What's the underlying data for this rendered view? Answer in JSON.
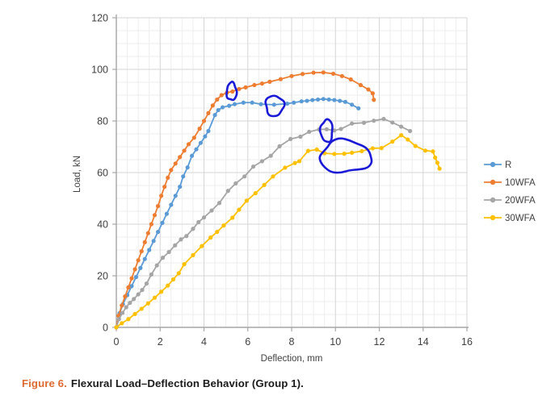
{
  "figure": {
    "caption_label": "Figure 6.",
    "caption_text": "Flexural Load–Deflection Behavior (Group 1)."
  },
  "chart_data": {
    "type": "line",
    "title": "",
    "xlabel": "Deflection, mm",
    "ylabel": "Load, kN",
    "xlim": [
      0,
      16
    ],
    "ylim": [
      0,
      120
    ],
    "x_major_ticks": [
      0,
      2,
      4,
      6,
      8,
      10,
      12,
      14,
      16
    ],
    "y_major_ticks": [
      0,
      20,
      40,
      60,
      80,
      100,
      120
    ],
    "x_minor_step": 0.5,
    "y_minor_step": 5,
    "grid": true,
    "legend_position": "right",
    "colors": {
      "axis": "#a6a6a6",
      "tick_label": "#404040",
      "grid_minor": "#ededed",
      "grid_major": "#d6d6d6",
      "annotation": "#1a1ad6",
      "caption_accent": "#dc6b32"
    },
    "series": [
      {
        "name": "R",
        "color": "#5b9bd5",
        "points": [
          [
            0,
            0
          ],
          [
            0.15,
            5.5
          ],
          [
            0.3,
            9
          ],
          [
            0.5,
            12.5
          ],
          [
            0.7,
            16
          ],
          [
            0.9,
            19.5
          ],
          [
            1.1,
            23
          ],
          [
            1.3,
            26.5
          ],
          [
            1.5,
            30
          ],
          [
            1.7,
            33.5
          ],
          [
            1.9,
            37
          ],
          [
            2.1,
            40.5
          ],
          [
            2.3,
            44
          ],
          [
            2.5,
            47.5
          ],
          [
            2.7,
            51
          ],
          [
            2.9,
            54.5
          ],
          [
            3.05,
            58.5
          ],
          [
            3.25,
            62
          ],
          [
            3.45,
            66.5
          ],
          [
            3.65,
            69
          ],
          [
            3.85,
            71.5
          ],
          [
            4.05,
            74
          ],
          [
            4.2,
            76.1
          ],
          [
            4.5,
            82.3
          ],
          [
            4.65,
            84.2
          ],
          [
            4.85,
            85.3
          ],
          [
            5.15,
            85.9
          ],
          [
            5.4,
            86.5
          ],
          [
            5.8,
            87.1
          ],
          [
            6.2,
            87.1
          ],
          [
            6.6,
            86.5
          ],
          [
            7.2,
            86.3
          ],
          [
            7.8,
            86.7
          ],
          [
            8.1,
            87.1
          ],
          [
            8.45,
            87.6
          ],
          [
            8.7,
            87.8
          ],
          [
            8.95,
            88.1
          ],
          [
            9.2,
            88.3
          ],
          [
            9.45,
            88.5
          ],
          [
            9.7,
            88.3
          ],
          [
            9.95,
            88.1
          ],
          [
            10.2,
            87.8
          ],
          [
            10.45,
            87.4
          ],
          [
            10.75,
            86.3
          ],
          [
            11.05,
            84.9
          ]
        ]
      },
      {
        "name": "10WFA",
        "color": "#ed7d31",
        "points": [
          [
            0,
            0
          ],
          [
            0.1,
            4.5
          ],
          [
            0.25,
            8.5
          ],
          [
            0.4,
            12
          ],
          [
            0.55,
            15.5
          ],
          [
            0.7,
            19
          ],
          [
            0.85,
            22.5
          ],
          [
            1,
            26
          ],
          [
            1.15,
            29.5
          ],
          [
            1.3,
            33
          ],
          [
            1.45,
            36.5
          ],
          [
            1.6,
            40
          ],
          [
            1.75,
            43.5
          ],
          [
            1.9,
            47
          ],
          [
            2.05,
            51
          ],
          [
            2.2,
            54.5
          ],
          [
            2.35,
            58
          ],
          [
            2.5,
            61
          ],
          [
            2.7,
            63.5
          ],
          [
            2.9,
            66
          ],
          [
            3.1,
            68.5
          ],
          [
            3.3,
            71
          ],
          [
            3.55,
            73.5
          ],
          [
            3.8,
            77
          ],
          [
            4,
            80
          ],
          [
            4.2,
            83
          ],
          [
            4.4,
            86
          ],
          [
            4.6,
            88.3
          ],
          [
            4.8,
            90
          ],
          [
            5.05,
            91
          ],
          [
            5.3,
            91.4
          ],
          [
            5.6,
            92.4
          ],
          [
            5.9,
            93
          ],
          [
            6.3,
            93.9
          ],
          [
            6.65,
            94.5
          ],
          [
            7,
            95.2
          ],
          [
            7.5,
            96.2
          ],
          [
            8,
            97.4
          ],
          [
            8.5,
            98.2
          ],
          [
            9,
            98.7
          ],
          [
            9.45,
            98.8
          ],
          [
            9.9,
            98.3
          ],
          [
            10.3,
            97.4
          ],
          [
            10.7,
            96.1
          ],
          [
            11.15,
            93.9
          ],
          [
            11.5,
            92.2
          ],
          [
            11.7,
            90.7
          ],
          [
            11.75,
            88.2
          ]
        ]
      },
      {
        "name": "20WFA",
        "color": "#a5a5a5",
        "points": [
          [
            0,
            0
          ],
          [
            0.12,
            3.2
          ],
          [
            0.28,
            5.6
          ],
          [
            0.45,
            7.8
          ],
          [
            0.62,
            9.5
          ],
          [
            0.8,
            11
          ],
          [
            1,
            12.8
          ],
          [
            1.18,
            14.5
          ],
          [
            1.38,
            17
          ],
          [
            1.6,
            20.5
          ],
          [
            1.85,
            24
          ],
          [
            2.12,
            27
          ],
          [
            2.4,
            29.2
          ],
          [
            2.68,
            31.8
          ],
          [
            2.95,
            34.1
          ],
          [
            3.2,
            35.4
          ],
          [
            3.5,
            38.2
          ],
          [
            3.75,
            40.8
          ],
          [
            4,
            42.6
          ],
          [
            4.35,
            45.3
          ],
          [
            4.7,
            48.2
          ],
          [
            5.1,
            52.9
          ],
          [
            5.45,
            55.8
          ],
          [
            5.85,
            58.5
          ],
          [
            6.25,
            62.3
          ],
          [
            6.65,
            64.4
          ],
          [
            7.05,
            66.5
          ],
          [
            7.45,
            70.2
          ],
          [
            7.95,
            73
          ],
          [
            8.4,
            73.9
          ],
          [
            8.8,
            75.8
          ],
          [
            9.25,
            76.7
          ],
          [
            9.6,
            76.8
          ],
          [
            9.95,
            76.3
          ],
          [
            10.25,
            76.9
          ],
          [
            10.75,
            79
          ],
          [
            11.3,
            79.3
          ],
          [
            11.75,
            80.1
          ],
          [
            12.2,
            80.8
          ],
          [
            12.6,
            79.4
          ],
          [
            13,
            77.8
          ],
          [
            13.4,
            76.1
          ]
        ]
      },
      {
        "name": "30WFA",
        "color": "#ffc000",
        "points": [
          [
            0,
            0
          ],
          [
            0.25,
            1.6
          ],
          [
            0.55,
            3.2
          ],
          [
            0.85,
            5.2
          ],
          [
            1.15,
            7.2
          ],
          [
            1.45,
            9.3
          ],
          [
            1.75,
            11.5
          ],
          [
            2.05,
            13.8
          ],
          [
            2.35,
            16.2
          ],
          [
            2.6,
            18.6
          ],
          [
            2.85,
            21
          ],
          [
            3.1,
            24.5
          ],
          [
            3.5,
            28
          ],
          [
            3.9,
            31.5
          ],
          [
            4.3,
            34.8
          ],
          [
            4.6,
            37
          ],
          [
            4.9,
            39.5
          ],
          [
            5.3,
            42.5
          ],
          [
            5.6,
            45.6
          ],
          [
            5.95,
            49.1
          ],
          [
            6.35,
            52
          ],
          [
            6.75,
            55.2
          ],
          [
            7.15,
            58.5
          ],
          [
            7.7,
            61.9
          ],
          [
            8.15,
            63.7
          ],
          [
            8.35,
            64.4
          ],
          [
            8.75,
            68.4
          ],
          [
            9.15,
            68.9
          ],
          [
            9.5,
            67.5
          ],
          [
            9.95,
            67.2
          ],
          [
            10.4,
            67.3
          ],
          [
            10.75,
            67.7
          ],
          [
            11.2,
            68.3
          ],
          [
            11.7,
            69.4
          ],
          [
            12.1,
            69.5
          ],
          [
            12.6,
            72
          ],
          [
            13,
            74.5
          ],
          [
            13.3,
            72.8
          ],
          [
            13.65,
            70.3
          ],
          [
            14.1,
            68.5
          ],
          [
            14.45,
            68.2
          ],
          [
            14.55,
            65.8
          ],
          [
            14.65,
            63.8
          ],
          [
            14.75,
            61.5
          ]
        ]
      }
    ],
    "annotations": [
      {
        "label": "circle-on-10WFA-point",
        "cx": 5.26,
        "cy": 91.4,
        "rx": 0.23,
        "ry": 3.5
      },
      {
        "label": "circle-on-R-point",
        "cx": 7.22,
        "cy": 85.9,
        "rx": 0.42,
        "ry": 4.0
      },
      {
        "label": "circle-on-20WFA-point",
        "cx": 9.6,
        "cy": 76.2,
        "rx": 0.28,
        "ry": 4.4
      },
      {
        "label": "blob-on-30WFA-plateau",
        "cx": 10.45,
        "cy": 66.2,
        "rx": 1.18,
        "ry": 6.4
      }
    ]
  }
}
